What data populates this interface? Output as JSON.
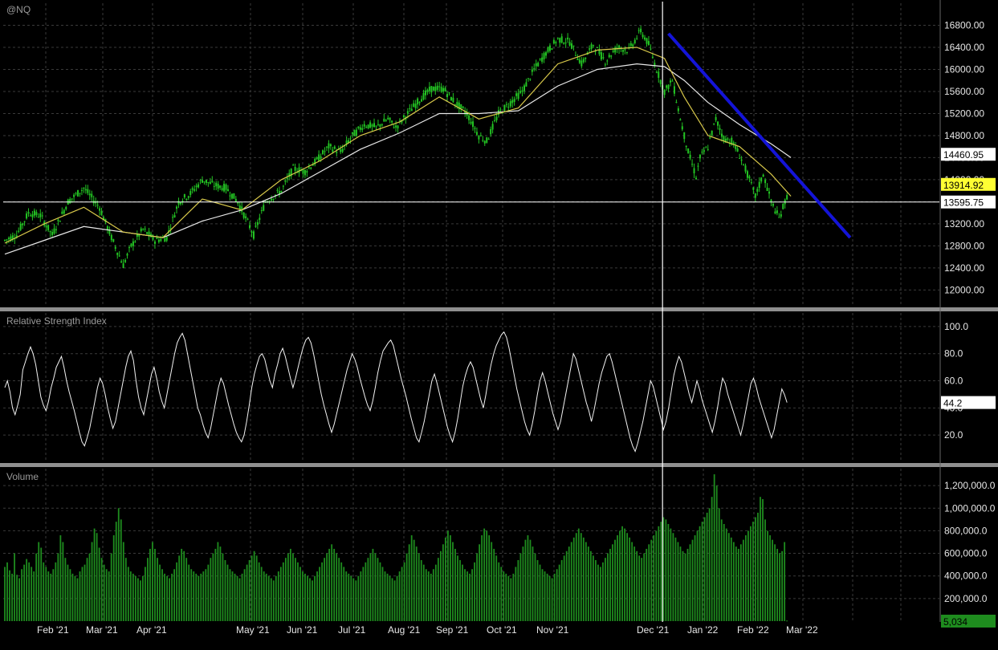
{
  "chart_data": [
    {
      "type": "candlestick",
      "title": "@NQ",
      "ylim": [
        11700,
        17200
      ],
      "yticks": [
        "16800.00",
        "16400.00",
        "16000.00",
        "15600.00",
        "15200.00",
        "14800.00",
        "14400.00",
        "14000.00",
        "13600.00",
        "13200.00",
        "12800.00",
        "12400.00",
        "12000.00"
      ],
      "ytick_values": [
        16800,
        16400,
        16000,
        15600,
        15200,
        14800,
        14400,
        14000,
        13600,
        13200,
        12800,
        12400,
        12000
      ],
      "x_months": [
        "Feb '21",
        "Mar '21",
        "Apr '21",
        "May '21",
        "Jun '21",
        "Jul '21",
        "Aug '21",
        "Sep '21",
        "Oct '21",
        "Nov '21",
        "Dec '21",
        "Jan '22",
        "Feb '22",
        "Mar '22"
      ],
      "price_path": [
        [
          0,
          12900
        ],
        [
          6,
          13000
        ],
        [
          12,
          13400
        ],
        [
          18,
          13350
        ],
        [
          24,
          13000
        ],
        [
          32,
          13600
        ],
        [
          40,
          13850
        ],
        [
          48,
          13500
        ],
        [
          54,
          12950
        ],
        [
          60,
          12450
        ],
        [
          64,
          12800
        ],
        [
          70,
          13100
        ],
        [
          76,
          12900
        ],
        [
          82,
          12950
        ],
        [
          88,
          13600
        ],
        [
          94,
          13750
        ],
        [
          100,
          14000
        ],
        [
          106,
          13900
        ],
        [
          112,
          13850
        ],
        [
          118,
          13600
        ],
        [
          122,
          13300
        ],
        [
          126,
          13000
        ],
        [
          132,
          13600
        ],
        [
          140,
          13800
        ],
        [
          146,
          14200
        ],
        [
          152,
          14150
        ],
        [
          158,
          14350
        ],
        [
          164,
          14600
        ],
        [
          170,
          14500
        ],
        [
          176,
          14800
        ],
        [
          182,
          15000
        ],
        [
          188,
          14950
        ],
        [
          194,
          15100
        ],
        [
          198,
          14950
        ],
        [
          204,
          15200
        ],
        [
          210,
          15450
        ],
        [
          216,
          15650
        ],
        [
          222,
          15650
        ],
        [
          228,
          15400
        ],
        [
          234,
          15200
        ],
        [
          240,
          14800
        ],
        [
          244,
          14700
        ],
        [
          250,
          15200
        ],
        [
          256,
          15400
        ],
        [
          262,
          15600
        ],
        [
          268,
          16000
        ],
        [
          274,
          16300
        ],
        [
          280,
          16550
        ],
        [
          286,
          16500
        ],
        [
          292,
          16100
        ],
        [
          298,
          16450
        ],
        [
          304,
          16150
        ],
        [
          310,
          16400
        ],
        [
          316,
          16350
        ],
        [
          322,
          16700
        ],
        [
          326,
          16450
        ],
        [
          330,
          16000
        ],
        [
          334,
          15600
        ],
        [
          338,
          15800
        ],
        [
          342,
          15100
        ],
        [
          346,
          14500
        ],
        [
          350,
          14050
        ],
        [
          352,
          14400
        ],
        [
          356,
          14600
        ],
        [
          360,
          15100
        ],
        [
          364,
          14750
        ],
        [
          368,
          14700
        ],
        [
          372,
          14450
        ],
        [
          376,
          14100
        ],
        [
          380,
          13700
        ],
        [
          384,
          14100
        ],
        [
          388,
          13600
        ],
        [
          392,
          13300
        ],
        [
          396,
          13700
        ]
      ],
      "sma_fast": [
        [
          0,
          12850
        ],
        [
          20,
          13200
        ],
        [
          40,
          13500
        ],
        [
          60,
          13050
        ],
        [
          80,
          12950
        ],
        [
          100,
          13650
        ],
        [
          120,
          13450
        ],
        [
          140,
          14000
        ],
        [
          160,
          14350
        ],
        [
          180,
          14800
        ],
        [
          200,
          15050
        ],
        [
          220,
          15500
        ],
        [
          240,
          15100
        ],
        [
          260,
          15300
        ],
        [
          280,
          16100
        ],
        [
          300,
          16350
        ],
        [
          320,
          16400
        ],
        [
          334,
          16200
        ],
        [
          344,
          15500
        ],
        [
          356,
          14800
        ],
        [
          372,
          14600
        ],
        [
          388,
          14100
        ],
        [
          398,
          13700
        ]
      ],
      "sma_slow": [
        [
          0,
          12650
        ],
        [
          20,
          12900
        ],
        [
          40,
          13150
        ],
        [
          60,
          13050
        ],
        [
          80,
          12950
        ],
        [
          100,
          13250
        ],
        [
          120,
          13450
        ],
        [
          140,
          13750
        ],
        [
          160,
          14150
        ],
        [
          180,
          14550
        ],
        [
          200,
          14850
        ],
        [
          220,
          15200
        ],
        [
          240,
          15200
        ],
        [
          260,
          15250
        ],
        [
          280,
          15700
        ],
        [
          300,
          16000
        ],
        [
          320,
          16100
        ],
        [
          334,
          16050
        ],
        [
          344,
          15800
        ],
        [
          356,
          15400
        ],
        [
          372,
          15000
        ],
        [
          388,
          14650
        ],
        [
          398,
          14400
        ]
      ],
      "trendline": [
        [
          336,
          16650
        ],
        [
          428,
          12950
        ]
      ],
      "hline": 13595.75,
      "vline_index": 333,
      "last_close": 13595.75,
      "badges": [
        {
          "value": "14460.95",
          "price": 14460.95
        },
        {
          "value": "13914.92",
          "price": 13914.92
        },
        {
          "value": "13595.75",
          "price": 13595.75
        }
      ]
    },
    {
      "type": "line",
      "title": "Relative Strength Index",
      "ylim": [
        0,
        110
      ],
      "yticks": [
        "100.0",
        "80.0",
        "60.0",
        "40.0",
        "20.0"
      ],
      "ytick_values": [
        100,
        80,
        60,
        40,
        20
      ],
      "last_value": "44.2",
      "values": [
        55,
        60,
        52,
        40,
        35,
        42,
        50,
        68,
        74,
        80,
        85,
        80,
        72,
        60,
        48,
        42,
        38,
        45,
        55,
        62,
        70,
        74,
        78,
        70,
        60,
        52,
        45,
        38,
        30,
        22,
        15,
        12,
        18,
        25,
        35,
        45,
        55,
        62,
        58,
        50,
        40,
        32,
        25,
        30,
        40,
        50,
        60,
        70,
        78,
        82,
        75,
        60,
        48,
        40,
        35,
        45,
        55,
        65,
        70,
        62,
        52,
        45,
        40,
        50,
        60,
        70,
        80,
        88,
        92,
        95,
        90,
        80,
        70,
        60,
        50,
        40,
        35,
        28,
        22,
        18,
        25,
        35,
        45,
        55,
        62,
        58,
        50,
        42,
        35,
        28,
        22,
        18,
        15,
        20,
        30,
        42,
        55,
        65,
        72,
        78,
        80,
        76,
        68,
        60,
        55,
        65,
        72,
        80,
        84,
        78,
        70,
        62,
        55,
        62,
        70,
        78,
        85,
        90,
        92,
        88,
        80,
        70,
        60,
        50,
        42,
        35,
        28,
        22,
        28,
        36,
        44,
        52,
        60,
        68,
        74,
        80,
        76,
        70,
        62,
        55,
        48,
        42,
        38,
        45,
        55,
        66,
        75,
        82,
        85,
        88,
        90,
        86,
        78,
        70,
        62,
        55,
        48,
        40,
        32,
        25,
        18,
        15,
        22,
        30,
        40,
        50,
        60,
        65,
        58,
        50,
        42,
        34,
        26,
        20,
        15,
        22,
        32,
        44,
        56,
        64,
        70,
        74,
        70,
        62,
        54,
        46,
        40,
        50,
        62,
        72,
        80,
        86,
        90,
        94,
        96,
        92,
        84,
        74,
        64,
        54,
        46,
        38,
        30,
        24,
        20,
        28,
        38,
        50,
        60,
        66,
        60,
        52,
        44,
        36,
        30,
        24,
        30,
        40,
        50,
        60,
        70,
        80,
        76,
        68,
        60,
        52,
        44,
        38,
        30,
        38,
        48,
        58,
        66,
        72,
        78,
        80,
        74,
        66,
        58,
        50,
        42,
        34,
        26,
        18,
        12,
        8,
        14,
        22,
        30,
        40,
        50,
        60,
        56,
        48,
        40,
        32,
        24,
        30,
        40,
        52,
        64,
        72,
        78,
        74,
        66,
        58,
        50,
        44,
        52,
        60,
        54,
        46,
        40,
        34,
        28,
        22,
        30,
        40,
        52,
        62,
        58,
        50,
        44,
        38,
        32,
        26,
        20,
        28,
        38,
        48,
        58,
        62,
        56,
        48,
        42,
        36,
        30,
        24,
        18,
        24,
        34,
        44,
        54,
        50,
        44
      ]
    },
    {
      "type": "bar",
      "title": "Volume",
      "ylim": [
        0,
        1350000
      ],
      "yticks": [
        "1,200,000.0",
        "1,000,000.0",
        "800,000.0",
        "600,000.0",
        "400,000.0",
        "200,000.0"
      ],
      "ytick_values": [
        1200000,
        1000000,
        800000,
        600000,
        400000,
        200000
      ],
      "last_value": "5,034",
      "values": [
        480000,
        520000,
        450000,
        420000,
        600000,
        410000,
        380000,
        460000,
        500000,
        550000,
        520000,
        480000,
        440000,
        600000,
        700000,
        650000,
        520000,
        480000,
        440000,
        420000,
        460000,
        520000,
        600000,
        760000,
        700000,
        560000,
        500000,
        460000,
        420000,
        400000,
        380000,
        440000,
        480000,
        500000,
        560000,
        600000,
        700000,
        820000,
        780000,
        650000,
        560000,
        500000,
        460000,
        440000,
        600000,
        760000,
        880000,
        1000000,
        900000,
        700000,
        560000,
        480000,
        440000,
        420000,
        400000,
        380000,
        360000,
        400000,
        480000,
        560000,
        640000,
        700000,
        640000,
        560000,
        500000,
        460000,
        420000,
        400000,
        380000,
        420000,
        460000,
        520000,
        580000,
        640000,
        620000,
        560000,
        500000,
        460000,
        440000,
        420000,
        400000,
        420000,
        440000,
        460000,
        500000,
        560000,
        600000,
        640000,
        700000,
        660000,
        600000,
        540000,
        500000,
        460000,
        440000,
        420000,
        400000,
        380000,
        420000,
        460000,
        500000,
        540000,
        580000,
        620000,
        580000,
        520000,
        480000,
        440000,
        420000,
        400000,
        380000,
        360000,
        400000,
        440000,
        480000,
        520000,
        560000,
        600000,
        640000,
        600000,
        560000,
        520000,
        480000,
        440000,
        420000,
        400000,
        380000,
        360000,
        400000,
        440000,
        480000,
        520000,
        560000,
        600000,
        640000,
        680000,
        640000,
        600000,
        560000,
        520000,
        480000,
        440000,
        420000,
        400000,
        380000,
        360000,
        400000,
        440000,
        480000,
        520000,
        560000,
        600000,
        640000,
        600000,
        560000,
        520000,
        480000,
        440000,
        420000,
        400000,
        380000,
        360000,
        400000,
        440000,
        480000,
        520000,
        600000,
        680000,
        760000,
        720000,
        660000,
        600000,
        540000,
        500000,
        460000,
        440000,
        420000,
        460000,
        500000,
        560000,
        620000,
        680000,
        740000,
        800000,
        760000,
        700000,
        640000,
        580000,
        540000,
        500000,
        460000,
        440000,
        420000,
        460000,
        520000,
        600000,
        680000,
        760000,
        820000,
        800000,
        760000,
        700000,
        640000,
        580000,
        520000,
        480000,
        440000,
        420000,
        400000,
        380000,
        420000,
        480000,
        540000,
        600000,
        660000,
        720000,
        760000,
        720000,
        660000,
        600000,
        540000,
        500000,
        460000,
        440000,
        420000,
        400000,
        380000,
        420000,
        460000,
        500000,
        540000,
        580000,
        620000,
        660000,
        700000,
        740000,
        780000,
        820000,
        780000,
        740000,
        700000,
        660000,
        620000,
        580000,
        540000,
        500000,
        480000,
        520000,
        560000,
        600000,
        640000,
        680000,
        720000,
        760000,
        800000,
        840000,
        820000,
        780000,
        740000,
        700000,
        660000,
        620000,
        580000,
        560000,
        600000,
        640000,
        680000,
        720000,
        760000,
        800000,
        840000,
        880000,
        920000,
        900000,
        860000,
        820000,
        780000,
        740000,
        700000,
        660000,
        620000,
        600000,
        640000,
        680000,
        720000,
        760000,
        800000,
        840000,
        880000,
        920000,
        960000,
        1000000,
        1100000,
        1300000,
        1200000,
        1000000,
        900000,
        860000,
        820000,
        780000,
        740000,
        700000,
        660000,
        640000,
        680000,
        720000,
        760000,
        800000,
        840000,
        880000,
        920000,
        960000,
        1100000,
        1080000,
        900000,
        800000,
        760000,
        720000,
        680000,
        640000,
        600000,
        620000,
        700000,
        5034
      ]
    }
  ]
}
